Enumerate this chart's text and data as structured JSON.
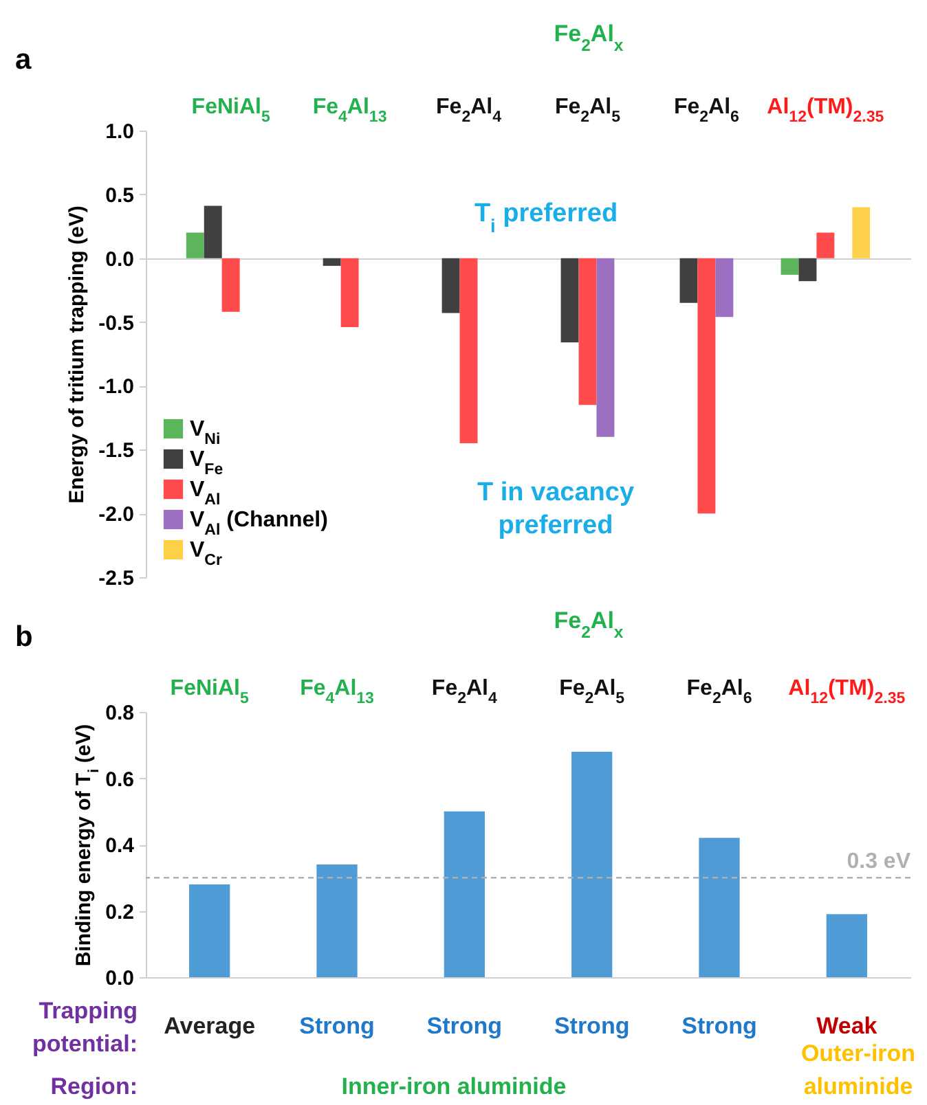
{
  "chart_data": [
    {
      "type": "bar",
      "title": "a",
      "ylabel": "Energy of tritium trapping (eV)",
      "categories": [
        "FeNiAl$_{5}$",
        "Fe$_{4}$Al$_{13}$",
        "Fe$_{2}$Al$_{4}$",
        "Fe$_{2}$Al$_{5}$",
        "Fe$_{2}$Al$_{6}$",
        "Al$_{12}$(TM)$_{2.35}$"
      ],
      "series": [
        {
          "name": "V$_{Ni}$",
          "color": "#5cb55a",
          "values": [
            0.2,
            null,
            null,
            null,
            null,
            -0.13
          ]
        },
        {
          "name": "V$_{Fe}$",
          "color": "#404040",
          "values": [
            0.41,
            -0.06,
            -0.43,
            -0.66,
            -0.35,
            -0.18
          ]
        },
        {
          "name": "V$_{Al}$",
          "color": "#ff4b4b",
          "values": [
            -0.42,
            -0.54,
            -1.45,
            -1.15,
            -2.0,
            0.2
          ]
        },
        {
          "name": "V$_{Al}$ (Channel)",
          "color": "#9b70c0",
          "values": [
            null,
            null,
            null,
            -1.4,
            -0.46,
            null
          ]
        },
        {
          "name": "V$_{Cr}$",
          "color": "#ffd14a",
          "values": [
            null,
            null,
            null,
            null,
            null,
            0.4
          ]
        }
      ],
      "ylim": [
        -2.5,
        1.0
      ],
      "yticks": [
        {
          "value": 1,
          "label": "1.0"
        },
        0.5,
        {
          "value": 0,
          "label": "0.0"
        },
        -0.5,
        {
          "value": -1,
          "label": "-1.0"
        },
        -1.5,
        {
          "value": -2,
          "label": "-2.0"
        },
        -2.5
      ],
      "legend": "bottom left",
      "tick_labels": "y",
      "annotations": [
        "Fe$_{2}$Al$_{x}$",
        "T$_{i}$ preferred",
        "T in vacancy preferred"
      ]
    },
    {
      "type": "bar",
      "title": "b",
      "ylabel": "Binding energy of T$_{i}$ (eV)",
      "categories": [
        "FeNiAl$_{5}$",
        "Fe$_{4}$Al$_{13}$",
        "Fe$_{2}$Al$_{4}$",
        "Fe$_{2}$Al$_{5}$",
        "Fe$_{2}$Al$_{6}$",
        "Al$_{12}$(TM)$_{2.35}$"
      ],
      "values": [
        0.28,
        0.34,
        0.5,
        0.68,
        0.42,
        0.19
      ],
      "color": "#4e9bd6",
      "ylim": [
        0,
        0.8
      ],
      "yticks": [
        {
          "value": 0,
          "label": "0.0"
        },
        0.2,
        0.4,
        0.6,
        0.8
      ],
      "ref_lines": [
        {
          "axis": "y",
          "value": 0.3,
          "label": "0.3 eV",
          "color": "#b0b0b0",
          "line_style": "dashed"
        }
      ],
      "annotations": [
        "Fe$_{2}$Al$_{x}$",
        "Trapping potential:",
        "Average",
        "Strong",
        "Strong",
        "Strong",
        "Strong",
        "Weak",
        "Region:",
        "Inner-iron aluminide",
        "Outer-iron aluminide"
      ]
    }
  ]
}
